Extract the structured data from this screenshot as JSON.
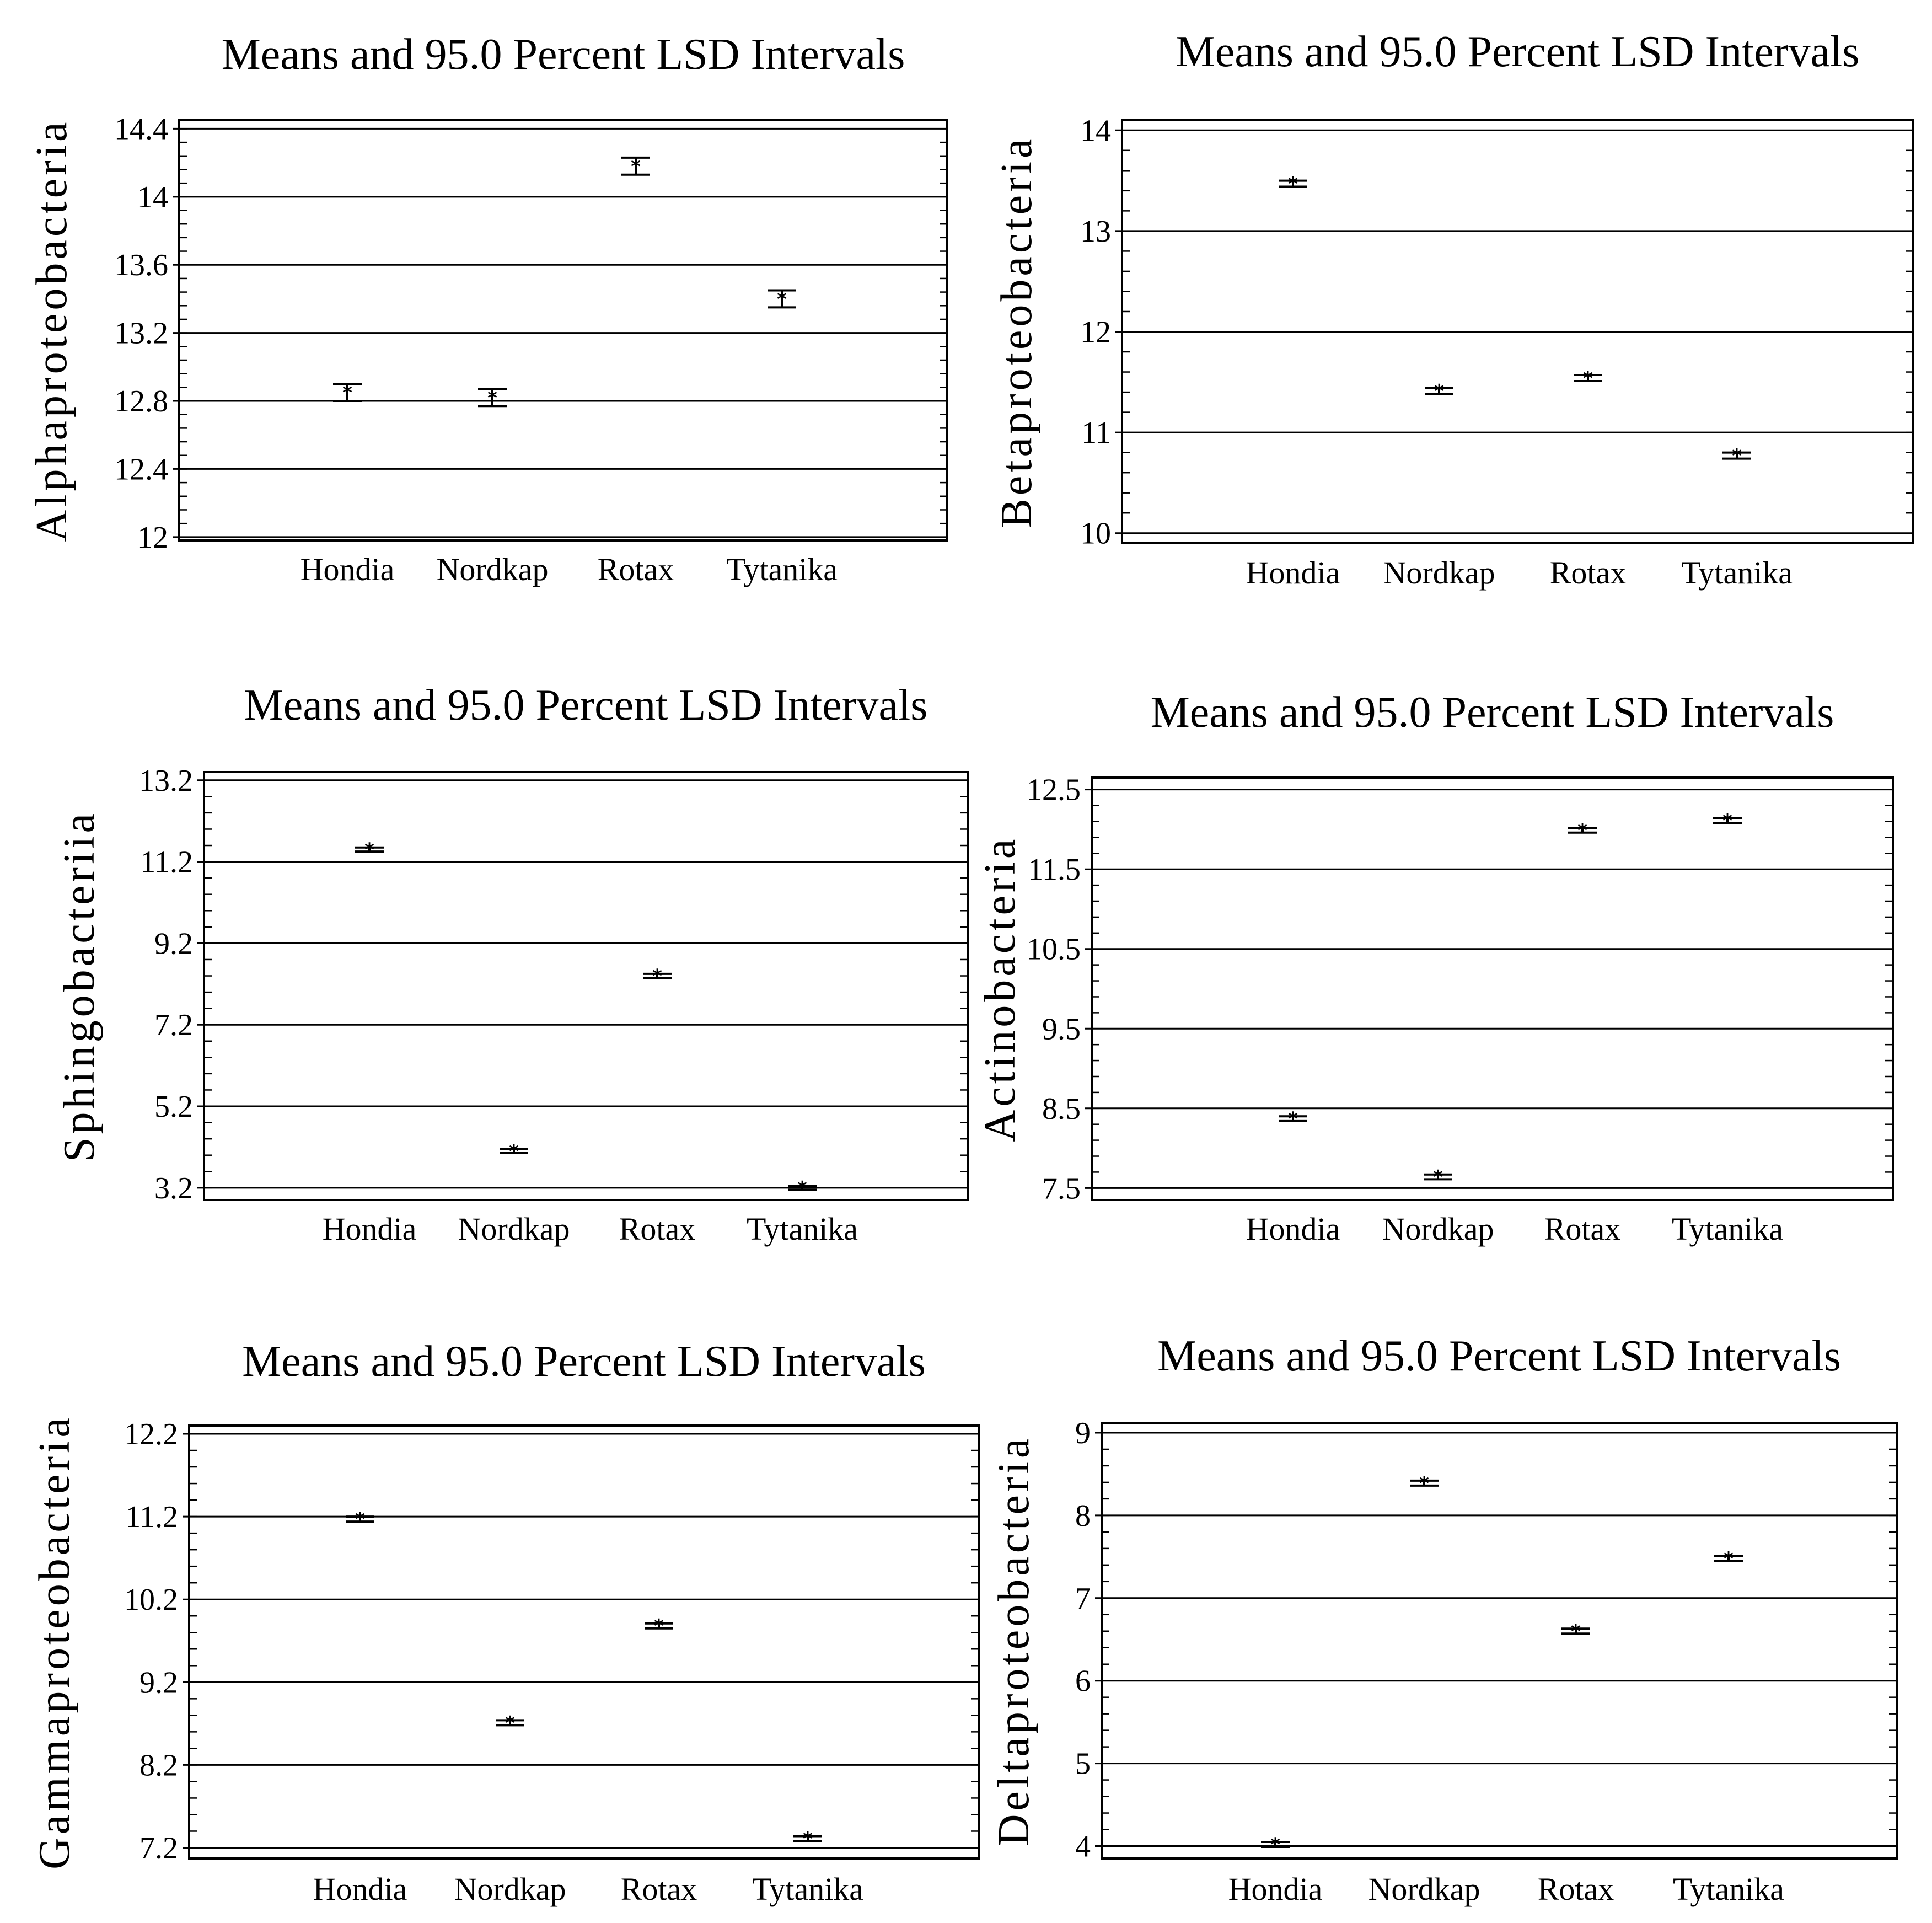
{
  "chart_data": [
    {
      "type": "interval",
      "title": "Means and 95.0 Percent LSD Intervals",
      "ylabel": "Alphaproteobacteria",
      "categories": [
        "Hondia",
        "Nordkap",
        "Rotax",
        "Tytanika"
      ],
      "yticks": [
        "12",
        "12.4",
        "12.8",
        "13.2",
        "13.6",
        "14",
        "14.4"
      ],
      "ylim": [
        11.98,
        14.45
      ],
      "means": [
        12.85,
        12.82,
        14.18,
        13.4
      ],
      "lower": [
        12.8,
        12.77,
        14.13,
        13.35
      ],
      "upper": [
        12.9,
        12.87,
        14.23,
        13.45
      ]
    },
    {
      "type": "interval",
      "title": "Means and 95.0 Percent LSD Intervals",
      "ylabel": "Betaproteobacteria",
      "categories": [
        "Hondia",
        "Nordkap",
        "Rotax",
        "Tytanika"
      ],
      "yticks": [
        "10",
        "11",
        "12",
        "13",
        "14"
      ],
      "ylim": [
        9.9,
        14.1
      ],
      "means": [
        13.47,
        11.41,
        11.54,
        10.77
      ],
      "lower": [
        13.44,
        11.38,
        11.51,
        10.74
      ],
      "upper": [
        13.5,
        11.44,
        11.57,
        10.8
      ]
    },
    {
      "type": "interval",
      "title": "Means and 95.0 Percent LSD Intervals",
      "ylabel": "Sphingobacteriia",
      "categories": [
        "Hondia",
        "Nordkap",
        "Rotax",
        "Tytanika"
      ],
      "yticks": [
        "3.2",
        "5.2",
        "7.2",
        "9.2",
        "11.2",
        "13.2"
      ],
      "ylim": [
        2.9,
        13.4
      ],
      "means": [
        11.5,
        4.1,
        8.4,
        3.2
      ],
      "lower": [
        11.45,
        4.05,
        8.35,
        3.15
      ],
      "upper": [
        11.55,
        4.15,
        8.45,
        3.25
      ]
    },
    {
      "type": "interval",
      "title": "Means and 95.0 Percent LSD Intervals",
      "ylabel": "Actinobacteria",
      "categories": [
        "Hondia",
        "Nordkap",
        "Rotax",
        "Tytanika"
      ],
      "yticks": [
        "7.5",
        "8.5",
        "9.5",
        "10.5",
        "11.5",
        "12.5"
      ],
      "ylim": [
        7.35,
        12.65
      ],
      "means": [
        8.37,
        7.64,
        11.99,
        12.11
      ],
      "lower": [
        8.34,
        7.61,
        11.96,
        12.08
      ],
      "upper": [
        8.4,
        7.67,
        12.02,
        12.14
      ]
    },
    {
      "type": "interval",
      "title": "Means and 95.0 Percent LSD Intervals",
      "ylabel": "Gammaproteobacteria",
      "categories": [
        "Hondia",
        "Nordkap",
        "Rotax",
        "Tytanika"
      ],
      "yticks": [
        "7.2",
        "8.2",
        "9.2",
        "10.2",
        "11.2",
        "12.2"
      ],
      "ylim": [
        7.07,
        12.3
      ],
      "means": [
        11.17,
        8.71,
        9.88,
        7.31
      ],
      "lower": [
        11.14,
        8.68,
        9.85,
        7.28
      ],
      "upper": [
        11.2,
        8.74,
        9.91,
        7.34
      ]
    },
    {
      "type": "interval",
      "title": "Means and 95.0 Percent LSD Intervals",
      "ylabel": "Deltaproteobacteria",
      "categories": [
        "Hondia",
        "Nordkap",
        "Rotax",
        "Tytanika"
      ],
      "yticks": [
        "4",
        "5",
        "6",
        "7",
        "8",
        "9"
      ],
      "ylim": [
        3.85,
        9.12
      ],
      "means": [
        4.02,
        8.39,
        6.6,
        7.48
      ],
      "lower": [
        3.99,
        8.36,
        6.57,
        7.45
      ],
      "upper": [
        4.05,
        8.42,
        6.63,
        7.51
      ]
    }
  ]
}
